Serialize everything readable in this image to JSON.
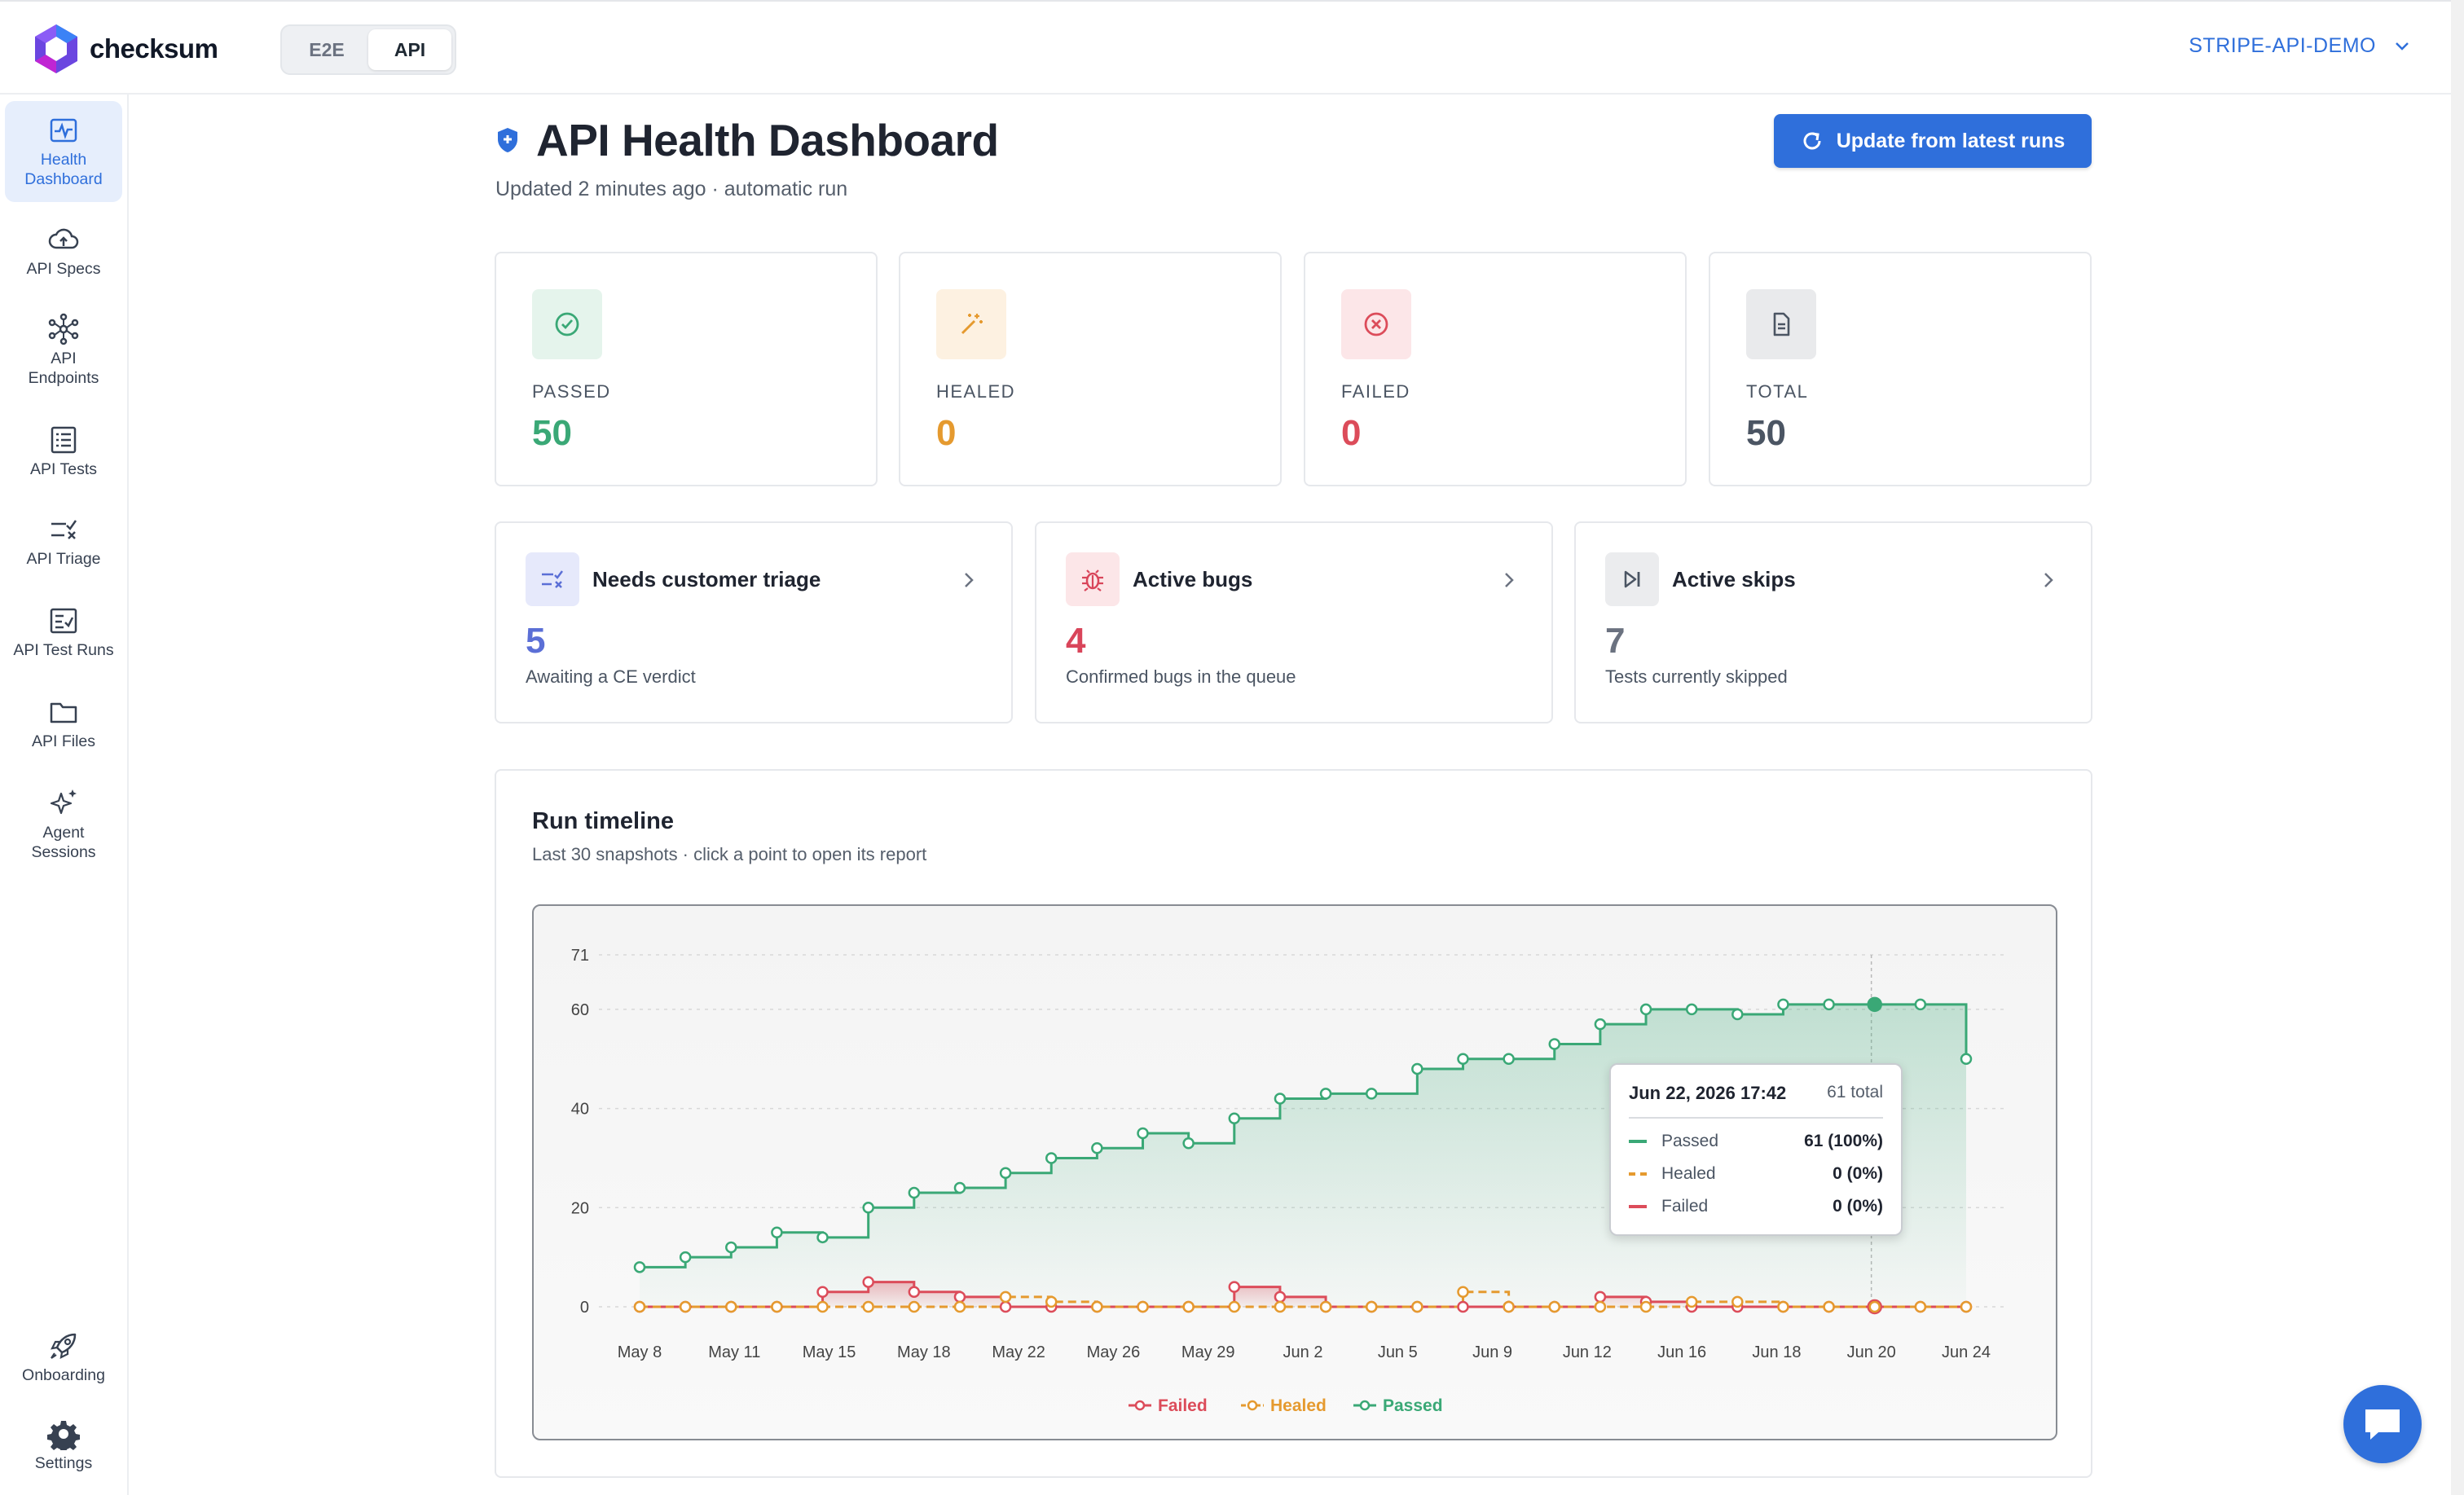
{
  "app": {
    "logo_text": "checksum",
    "modes": [
      "E2E",
      "API"
    ],
    "active_mode": "API",
    "project": "STRIPE-API-DEMO"
  },
  "sidebar": {
    "items": [
      {
        "label": "Health\nDashboard",
        "icon": "pulse-icon",
        "active": true
      },
      {
        "label": "API Specs",
        "icon": "cloud-upload-icon"
      },
      {
        "label": "API\nEndpoints",
        "icon": "network-icon"
      },
      {
        "label": "API Tests",
        "icon": "list-icon"
      },
      {
        "label": "API Triage",
        "icon": "triage-icon"
      },
      {
        "label": "API Test Runs",
        "icon": "checklist-icon"
      },
      {
        "label": "API Files",
        "icon": "folder-icon"
      },
      {
        "label": "Agent\nSessions",
        "icon": "sparkles-icon"
      }
    ],
    "bottom_items": [
      {
        "label": "Onboarding",
        "icon": "rocket-icon"
      },
      {
        "label": "Settings",
        "icon": "gear-icon"
      }
    ]
  },
  "header": {
    "title": "API Health Dashboard",
    "subtitle": "Updated 2 minutes ago · automatic run",
    "update_button": "Update from latest runs"
  },
  "stats": [
    {
      "label": "PASSED",
      "value": "50",
      "color": "#3aa876"
    },
    {
      "label": "HEALED",
      "value": "0",
      "color": "#e59a2f"
    },
    {
      "label": "FAILED",
      "value": "0",
      "color": "#dc4c5a"
    },
    {
      "label": "TOTAL",
      "value": "50",
      "color": "#4b5563"
    }
  ],
  "cards": [
    {
      "title": "Needs customer triage",
      "value": "5",
      "desc": "Awaiting a CE verdict",
      "color": "#5b6fd6"
    },
    {
      "title": "Active bugs",
      "value": "4",
      "desc": "Confirmed bugs in the queue",
      "color": "#d9455a"
    },
    {
      "title": "Active skips",
      "value": "7",
      "desc": "Tests currently skipped",
      "color": "#6b7280"
    }
  ],
  "timeline": {
    "title": "Run timeline",
    "subtitle": "Last 30 snapshots · click a point to open its report"
  },
  "chart_data": {
    "type": "line",
    "x_ticks": [
      "May 8",
      "May 11",
      "May 15",
      "May 18",
      "May 22",
      "May 26",
      "May 29",
      "Jun 2",
      "Jun 5",
      "Jun 9",
      "Jun 12",
      "Jun 16",
      "Jun 18",
      "Jun 20",
      "Jun 24"
    ],
    "y_ticks": [
      0,
      20,
      40,
      60,
      71
    ],
    "ylim": [
      0,
      71
    ],
    "grid": true,
    "legend_position": "bottom-center",
    "series": [
      {
        "name": "Failed",
        "color": "#dc4c5a",
        "style": "solid",
        "values": [
          0,
          0,
          0,
          0,
          3,
          5,
          3,
          2,
          0,
          0,
          0,
          0,
          0,
          4,
          2,
          0,
          0,
          0,
          0,
          0,
          0,
          2,
          1,
          0,
          0,
          0,
          0,
          0,
          0,
          0
        ]
      },
      {
        "name": "Healed",
        "color": "#e59a2f",
        "style": "dashed",
        "values": [
          0,
          0,
          0,
          0,
          0,
          0,
          0,
          0,
          2,
          1,
          0,
          0,
          0,
          0,
          0,
          0,
          0,
          0,
          3,
          0,
          0,
          0,
          0,
          1,
          1,
          0,
          0,
          0,
          0,
          0
        ]
      },
      {
        "name": "Passed",
        "color": "#3aa876",
        "style": "solid",
        "values": [
          8,
          10,
          12,
          15,
          14,
          20,
          23,
          24,
          27,
          30,
          32,
          35,
          33,
          38,
          42,
          43,
          43,
          48,
          50,
          50,
          53,
          57,
          60,
          60,
          59,
          61,
          61,
          61,
          61,
          50
        ]
      }
    ],
    "tooltip": {
      "date": "Jun 22, 2026 17:42",
      "total": "61 total",
      "rows": [
        {
          "name": "Passed",
          "value": "61 (100%)"
        },
        {
          "name": "Healed",
          "value": "0 (0%)"
        },
        {
          "name": "Failed",
          "value": "0 (0%)"
        }
      ]
    }
  }
}
